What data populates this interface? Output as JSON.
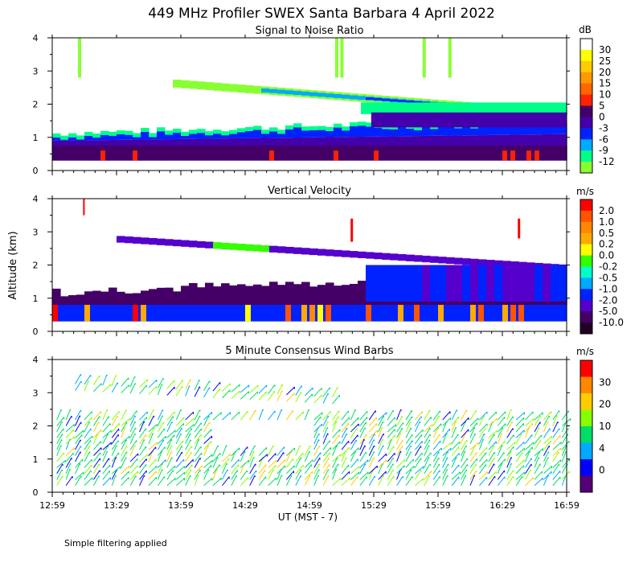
{
  "title": "449 MHz Profiler SWEX Santa Barbara  4 April 2022",
  "y_axis_label": "Altitude (km)",
  "x_axis_label": "UT  (MST - 7)",
  "footnote": "Simple filtering applied",
  "chart_data": [
    {
      "type": "heatmap",
      "title": "Signal to Noise Ratio",
      "unit": "dB",
      "ylim": [
        0,
        4
      ],
      "y_ticks": [
        "0",
        "1",
        "2",
        "3",
        "4"
      ],
      "x_ticks": [
        "12:59",
        "13:29",
        "13:59",
        "14:29",
        "14:59",
        "15:29",
        "15:59",
        "16:29",
        "16:59"
      ],
      "colorbar": {
        "levels": [
          "30",
          "25",
          "20",
          "15",
          "10",
          "5",
          "0",
          "-3",
          "-6",
          "-9",
          "-12"
        ],
        "colors": [
          "#ffffff",
          "#ffff00",
          "#ffcc00",
          "#ff9900",
          "#ff6600",
          "#ff2200",
          "#440066",
          "#4400aa",
          "#0022ff",
          "#00aaff",
          "#00ff88",
          "#88ff33"
        ]
      }
    },
    {
      "type": "heatmap",
      "title": "Vertical Velocity",
      "unit": "m/s",
      "ylim": [
        0,
        4
      ],
      "y_ticks": [
        "0",
        "1",
        "2",
        "3",
        "4"
      ],
      "x_ticks": [
        "12:59",
        "13:29",
        "13:59",
        "14:29",
        "14:59",
        "15:29",
        "15:59",
        "16:29",
        "16:59"
      ],
      "colorbar": {
        "levels": [
          "2.0",
          "1.0",
          "0.5",
          "0.2",
          "0.0",
          "-0.2",
          "-0.5",
          "-1.0",
          "-2.0",
          "-5.0",
          "-10.0"
        ],
        "colors": [
          "#ff0000",
          "#ff5500",
          "#ff8800",
          "#ffaa00",
          "#ffff00",
          "#33ff00",
          "#00ffcc",
          "#00aaff",
          "#0022ff",
          "#5500cc",
          "#440066",
          "#220022"
        ]
      }
    },
    {
      "type": "scatter",
      "title": "5 Minute Consensus Wind Barbs",
      "unit": "m/s",
      "ylim": [
        0,
        4
      ],
      "y_ticks": [
        "0",
        "1",
        "2",
        "3",
        "4"
      ],
      "x_ticks": [
        "12:59",
        "13:29",
        "13:59",
        "14:29",
        "14:59",
        "15:29",
        "15:59",
        "16:29",
        "16:59"
      ],
      "colorbar": {
        "levels": [
          "30",
          "20",
          "10",
          "4",
          "0"
        ],
        "colors": [
          "#ff0000",
          "#ff8800",
          "#ffcc00",
          "#88ff00",
          "#00dd66",
          "#00aaff",
          "#0000ff",
          "#550077"
        ]
      }
    }
  ]
}
